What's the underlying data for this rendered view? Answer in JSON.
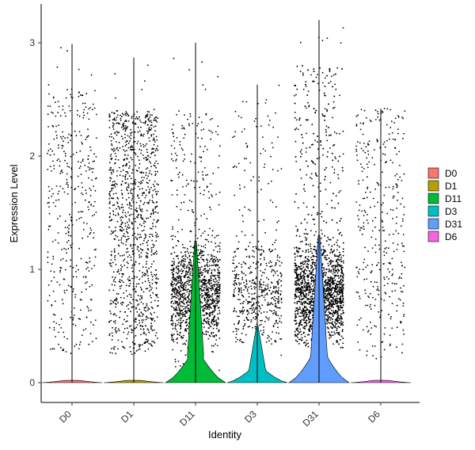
{
  "chart_data": {
    "type": "violin",
    "xlabel": "Identity",
    "ylabel": "Expression Level",
    "ylim": [
      -0.18,
      3.3
    ],
    "yticks": [
      0,
      1,
      2,
      3
    ],
    "grid": false,
    "legend_position": "right",
    "categories": [
      "D0",
      "D1",
      "D11",
      "D3",
      "D31",
      "D6"
    ],
    "colors": {
      "D0": "#F8766D",
      "D1": "#B79F00",
      "D11": "#00BA38",
      "D3": "#00BFC4",
      "D31": "#619CFF",
      "D6": "#F564E3"
    },
    "series": [
      {
        "name": "D0",
        "max": 2.99,
        "base_density": 0.03,
        "nonzero_range": [
          0.25,
          2.6
        ],
        "nonzero_points": 400
      },
      {
        "name": "D1",
        "max": 2.87,
        "base_density": 0.04,
        "nonzero_range": [
          0.25,
          2.4
        ],
        "nonzero_points": 1100
      },
      {
        "name": "D11",
        "max": 3.0,
        "base_density": 0.85,
        "nonzero_range": [
          0.1,
          2.4
        ],
        "nonzero_points": 1400
      },
      {
        "name": "D3",
        "max": 2.63,
        "base_density": 0.45,
        "nonzero_range": [
          0.2,
          2.4
        ],
        "nonzero_points": 550
      },
      {
        "name": "D31",
        "max": 3.2,
        "base_density": 0.95,
        "nonzero_range": [
          0.3,
          2.8
        ],
        "nonzero_points": 2600
      },
      {
        "name": "D6",
        "max": 2.42,
        "base_density": 0.05,
        "nonzero_range": [
          0.2,
          2.4
        ],
        "nonzero_points": 350
      }
    ]
  }
}
